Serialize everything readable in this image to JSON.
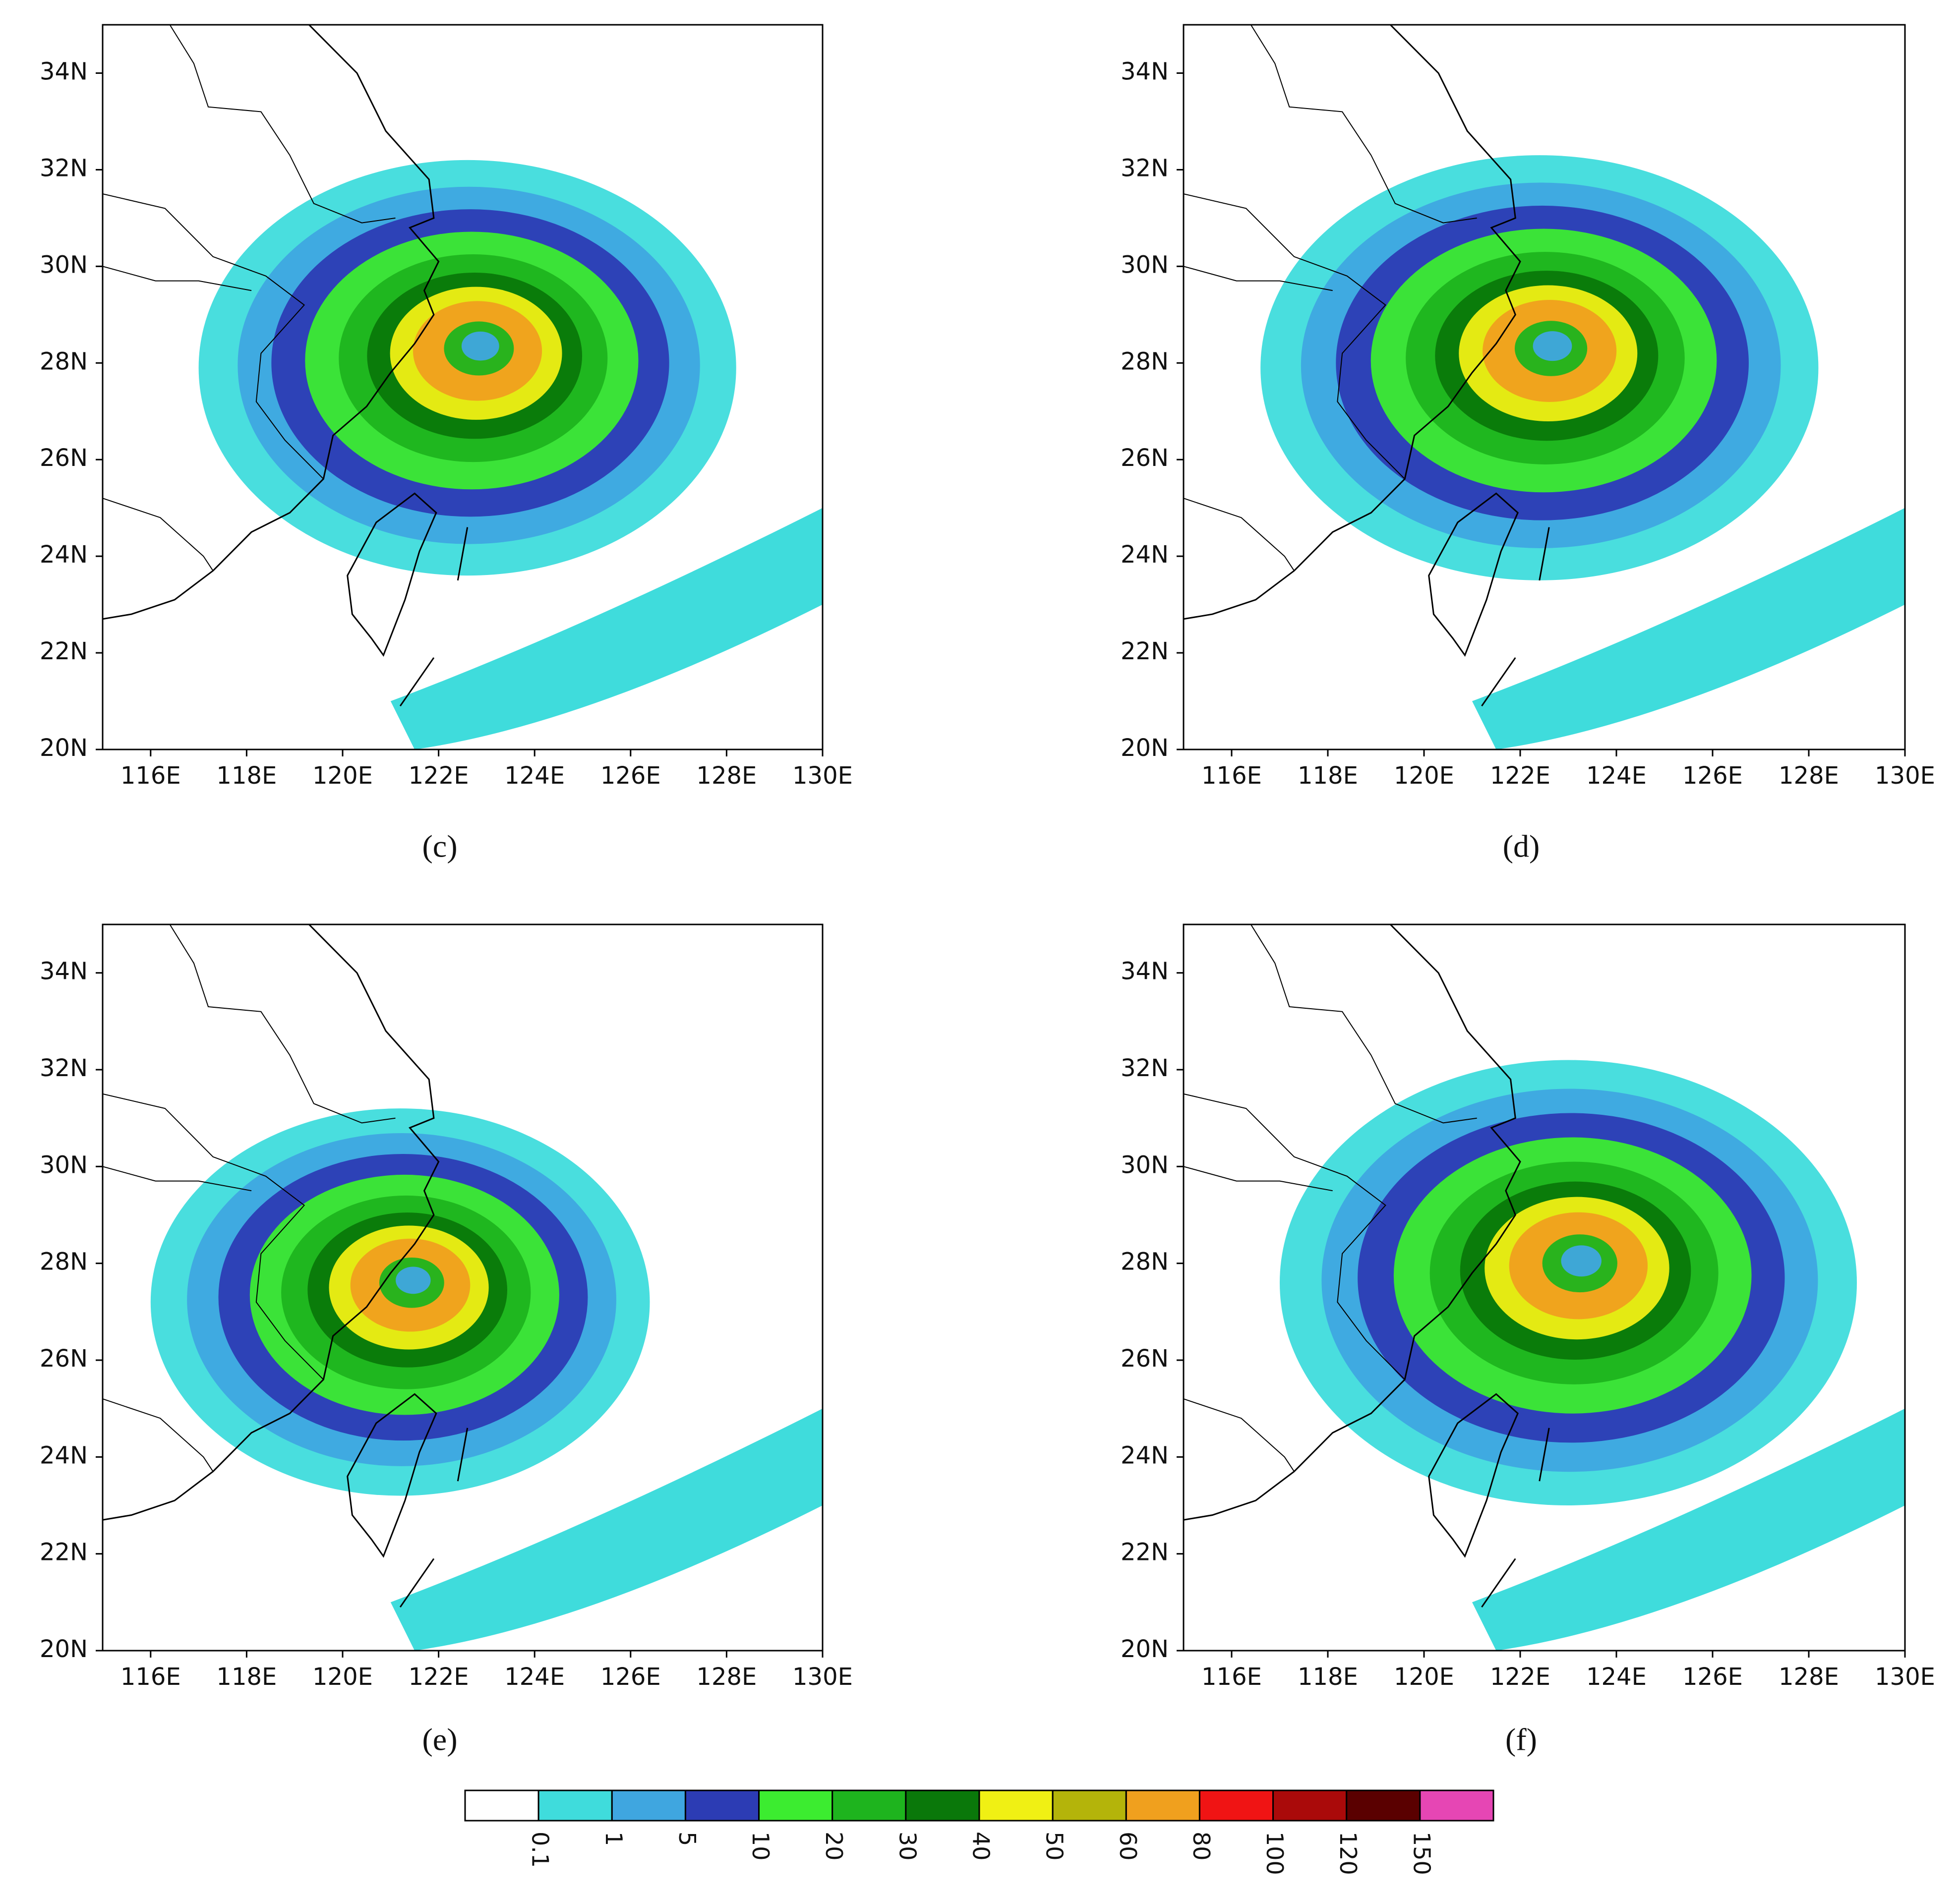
{
  "map": {
    "xlim": [
      115,
      130
    ],
    "ylim": [
      20,
      35
    ],
    "xticks": [
      {
        "value": 116,
        "label": "116E"
      },
      {
        "value": 118,
        "label": "118E"
      },
      {
        "value": 120,
        "label": "120E"
      },
      {
        "value": 122,
        "label": "122E"
      },
      {
        "value": 124,
        "label": "124E"
      },
      {
        "value": 126,
        "label": "126E"
      },
      {
        "value": 128,
        "label": "128E"
      },
      {
        "value": 130,
        "label": "130E"
      }
    ],
    "yticks": [
      {
        "value": 20,
        "label": "20N"
      },
      {
        "value": 22,
        "label": "22N"
      },
      {
        "value": 24,
        "label": "24N"
      },
      {
        "value": 26,
        "label": "26N"
      },
      {
        "value": 28,
        "label": "28N"
      },
      {
        "value": 30,
        "label": "30N"
      },
      {
        "value": 32,
        "label": "32N"
      },
      {
        "value": 34,
        "label": "34N"
      }
    ]
  },
  "panels": [
    "(c)",
    "(d)",
    "(e)",
    "(f)"
  ],
  "colorbar": {
    "levels": [
      0.1,
      1,
      5,
      10,
      20,
      30,
      40,
      50,
      60,
      80,
      100,
      120,
      150
    ],
    "colors": [
      "#ffffff",
      "#3fdcdc",
      "#3fa6e0",
      "#2c3cb4",
      "#3cec30",
      "#1eb41e",
      "#0a780a",
      "#f0f014",
      "#b4b40a",
      "#f0a01e",
      "#f01414",
      "#aa0a0a",
      "#5a0000",
      "#e646b4"
    ]
  }
}
